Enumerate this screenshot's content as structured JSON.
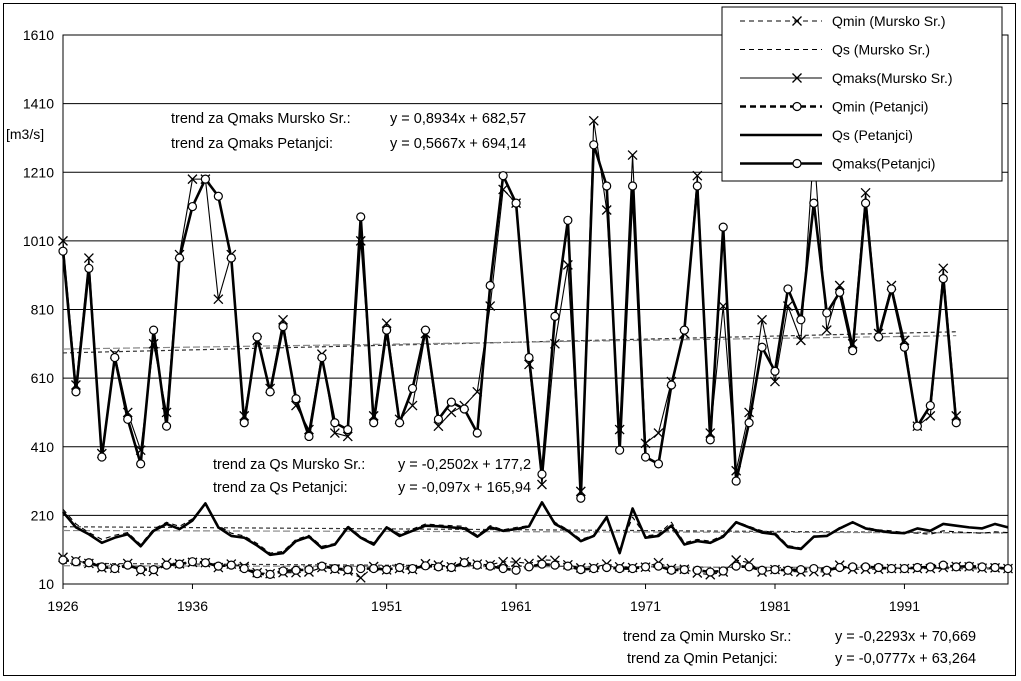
{
  "chart_data": {
    "type": "line",
    "ylabel": "[m3/s]",
    "ylim": [
      10,
      1610
    ],
    "yticks": [
      10,
      210,
      410,
      610,
      810,
      1010,
      1210,
      1410,
      1610
    ],
    "xlim": [
      1926,
      1999
    ],
    "xticks": [
      1926,
      1936,
      1951,
      1961,
      1971,
      1981,
      1991
    ],
    "grid": "horizontal",
    "legend_position": "top-right",
    "years_start": 1926,
    "series": [
      {
        "key": "qmin_ms",
        "name": "Qmin (Mursko Sr.)",
        "style": "dash",
        "marker": "x",
        "weight": "thin",
        "values": [
          88,
          78,
          70,
          57,
          56,
          70,
          47,
          47,
          72,
          69,
          73,
          72,
          58,
          68,
          61,
          43,
          40,
          43,
          43,
          45,
          58,
          53,
          48,
          28,
          61,
          51,
          55,
          52,
          69,
          65,
          60,
          75,
          68,
          66,
          75,
          74,
          70,
          80,
          79,
          66,
          57,
          58,
          68,
          60,
          58,
          59,
          72,
          55,
          53,
          42,
          37,
          45,
          80,
          72,
          45,
          52,
          47,
          45,
          46,
          45,
          65,
          53,
          53,
          53,
          55,
          55,
          55,
          55,
          58,
          61,
          60,
          56,
          57,
          55
        ]
      },
      {
        "key": "qs_ms",
        "name": "Qs (Mursko Sr.)",
        "style": "dash",
        "marker": "none",
        "weight": "thin",
        "values": [
          228,
          185,
          160,
          140,
          152,
          160,
          125,
          170,
          190,
          178,
          200,
          245,
          180,
          158,
          150,
          128,
          100,
          105,
          140,
          152,
          120,
          128,
          180,
          148,
          130,
          178,
          155,
          170,
          185,
          182,
          180,
          178,
          152,
          180,
          168,
          175,
          180,
          245,
          190,
          168,
          140,
          152,
          200,
          110,
          205,
          150,
          155,
          190,
          130,
          140,
          135,
          152,
          192,
          178,
          165,
          160,
          122,
          115,
          150,
          150,
          175,
          190,
          175,
          168,
          165,
          160,
          158,
          155,
          165,
          162,
          160,
          158,
          162,
          160
        ]
      },
      {
        "key": "qmaks_ms",
        "name": "Qmaks(Mursko Sr.)",
        "style": "solid",
        "marker": "x",
        "weight": "thin",
        "values": [
          1010,
          590,
          960,
          390,
          680,
          510,
          400,
          710,
          510,
          970,
          1190,
          1190,
          840,
          970,
          500,
          720,
          580,
          780,
          530,
          460,
          680,
          450,
          440,
          1010,
          500,
          770,
          490,
          530,
          740,
          470,
          510,
          530,
          570,
          820,
          1160,
          1120,
          650,
          300,
          710,
          940,
          280,
          1360,
          1100,
          460,
          1260,
          420,
          450,
          600,
          740,
          1200,
          450,
          820,
          340,
          510,
          780,
          600,
          820,
          720,
          1280,
          750,
          880,
          710,
          1150,
          740,
          880,
          720,
          470,
          500,
          930,
          500
        ]
      },
      {
        "key": "qmin_pet",
        "name": "Qmin (Petanjci)",
        "style": "dash",
        "marker": "o",
        "weight": "thick",
        "values": [
          80,
          75,
          72,
          60,
          55,
          65,
          52,
          52,
          65,
          68,
          75,
          72,
          62,
          65,
          55,
          40,
          38,
          48,
          50,
          52,
          62,
          55,
          52,
          55,
          55,
          52,
          58,
          55,
          63,
          60,
          58,
          72,
          65,
          62,
          55,
          50,
          60,
          68,
          65,
          62,
          52,
          55,
          58,
          55,
          55,
          60,
          62,
          50,
          52,
          50,
          45,
          48,
          62,
          60,
          50,
          52,
          50,
          52,
          55,
          50,
          58,
          60,
          60,
          58,
          55,
          55,
          58,
          60,
          65,
          60,
          62,
          60,
          58,
          55
        ]
      },
      {
        "key": "qs_pet",
        "name": "Qs (Petanjci)",
        "style": "solid",
        "marker": "none",
        "weight": "thick",
        "values": [
          220,
          175,
          155,
          130,
          145,
          155,
          120,
          165,
          185,
          170,
          195,
          245,
          175,
          150,
          145,
          122,
          95,
          100,
          135,
          148,
          115,
          125,
          175,
          145,
          125,
          175,
          150,
          165,
          180,
          178,
          175,
          172,
          148,
          175,
          165,
          170,
          178,
          248,
          185,
          165,
          135,
          150,
          205,
          100,
          230,
          145,
          150,
          180,
          125,
          135,
          130,
          148,
          190,
          175,
          160,
          155,
          118,
          112,
          148,
          150,
          172,
          190,
          172,
          165,
          160,
          158,
          172,
          165,
          185,
          180,
          175,
          172,
          185,
          175
        ]
      },
      {
        "key": "qmaks_pet",
        "name": "Qmaks(Petanjci)",
        "style": "solid",
        "marker": "o",
        "weight": "thick",
        "values": [
          980,
          570,
          930,
          380,
          670,
          490,
          360,
          750,
          470,
          960,
          1110,
          1190,
          1140,
          960,
          480,
          730,
          570,
          760,
          550,
          440,
          670,
          480,
          460,
          1080,
          480,
          750,
          480,
          580,
          750,
          490,
          540,
          520,
          450,
          880,
          1200,
          1120,
          670,
          330,
          790,
          1070,
          260,
          1290,
          1170,
          400,
          1170,
          380,
          360,
          590,
          750,
          1170,
          430,
          1050,
          310,
          480,
          700,
          630,
          870,
          780,
          1120,
          800,
          860,
          690,
          1120,
          730,
          870,
          700,
          470,
          530,
          900,
          480
        ]
      }
    ],
    "trends": [
      {
        "series": "qmaks_ms",
        "slope": 0.8934,
        "intercept": 682.57
      },
      {
        "series": "qmaks_pet",
        "slope": 0.5667,
        "intercept": 694.14
      },
      {
        "series": "qs_ms",
        "slope": -0.2502,
        "intercept": 177.2
      },
      {
        "series": "qs_pet",
        "slope": -0.097,
        "intercept": 165.94
      },
      {
        "series": "qmin_ms",
        "slope": -0.2293,
        "intercept": 70.669
      },
      {
        "series": "qmin_pet",
        "slope": -0.0777,
        "intercept": 63.264
      }
    ],
    "annotations": {
      "qmaks_ms_label": "trend za Qmaks Mursko Sr.:",
      "qmaks_ms_eq": "y = 0,8934x + 682,57",
      "qmaks_pet_label": "trend za Qmaks Petanjci:",
      "qmaks_pet_eq": "y = 0,5667x + 694,14",
      "qs_ms_label": "trend za Qs Mursko Sr.:",
      "qs_ms_eq": "y = -0,2502x + 177,2",
      "qs_pet_label": "trend za Qs Petanjci:",
      "qs_pet_eq": "y = -0,097x + 165,94",
      "qmin_ms_label": "trend za Qmin Mursko Sr.:",
      "qmin_ms_eq": "y = -0,2293x + 70,669",
      "qmin_pet_label": "trend za Qmin Petanjci:",
      "qmin_pet_eq": "y = -0,0777x + 63,264"
    }
  }
}
